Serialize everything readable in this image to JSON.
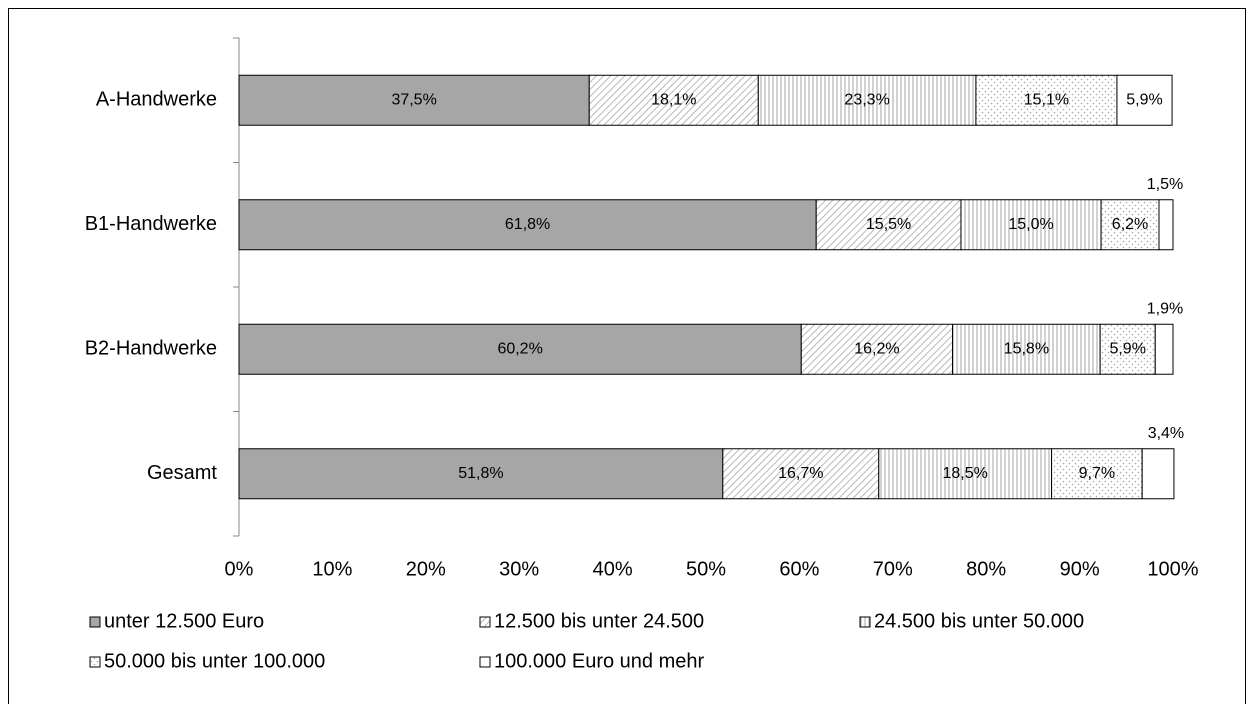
{
  "chart_data": {
    "type": "stacked_barh",
    "categories": [
      "A-Handwerke",
      "B1-Handwerke",
      "B2-Handwerke",
      "Gesamt"
    ],
    "series": [
      {
        "name": "unter 12.500 Euro",
        "color": "#a6a6a6",
        "pattern": "solid",
        "values": [
          37.5,
          61.8,
          60.2,
          51.8
        ],
        "value_labels": [
          "37,5%",
          "61,8%",
          "60,2%",
          "51,8%"
        ]
      },
      {
        "name": "12.500 bis unter 24.500",
        "color": "#a6a6a6",
        "pattern": "diagonal",
        "values": [
          18.1,
          15.5,
          16.2,
          16.7
        ],
        "value_labels": [
          "18,1%",
          "15,5%",
          "16,2%",
          "16,7%"
        ]
      },
      {
        "name": "24.500 bis unter 50.000",
        "color": "#a6a6a6",
        "pattern": "vertical",
        "values": [
          23.3,
          15.0,
          15.8,
          18.5
        ],
        "value_labels": [
          "23,3%",
          "15,0%",
          "15,8%",
          "18,5%"
        ]
      },
      {
        "name": "50.000 bis unter 100.000",
        "color": "#a6a6a6",
        "pattern": "dots",
        "values": [
          15.1,
          6.2,
          5.9,
          9.7
        ],
        "value_labels": [
          "15,1%",
          "6,2%",
          "5,9%",
          "9,7%"
        ]
      },
      {
        "name": "100.000 Euro und mehr",
        "color": "#ffffff",
        "pattern": "solid",
        "values": [
          5.9,
          1.5,
          1.9,
          3.4
        ],
        "value_labels": [
          "5,9%",
          "1,5%",
          "1,9%",
          "3,4%"
        ]
      }
    ],
    "xlim": [
      0,
      100
    ],
    "xticks": [
      {
        "value": 0,
        "label": "0%"
      },
      {
        "value": 10,
        "label": "10%"
      },
      {
        "value": 20,
        "label": "20%"
      },
      {
        "value": 30,
        "label": "30%"
      },
      {
        "value": 40,
        "label": "40%"
      },
      {
        "value": 50,
        "label": "50%"
      },
      {
        "value": 60,
        "label": "60%"
      },
      {
        "value": 70,
        "label": "70%"
      },
      {
        "value": 80,
        "label": "80%"
      },
      {
        "value": 90,
        "label": "90%"
      },
      {
        "value": 100,
        "label": "100%"
      }
    ],
    "legend": "bottom"
  }
}
